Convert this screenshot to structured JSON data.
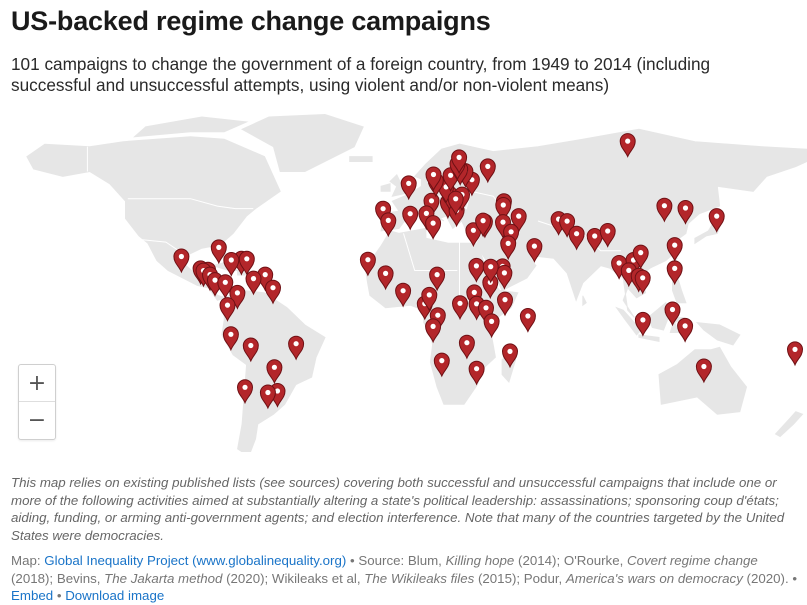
{
  "header": {
    "title": "US-backed regime change campaigns",
    "subtitle": "101 campaigns to change the government of a foreign country, from 1949 to 2014 (including successful and unsuccessful attempts, using violent and/or non-violent means)"
  },
  "map": {
    "land_color": "#e6e6e6",
    "border_color": "#ffffff",
    "marker_color": "#b3262a",
    "marker_stroke": "#6e1014",
    "marker_icon": "map-pin-icon",
    "markers": [
      {
        "name": "Guatemala",
        "lon": -90.5,
        "lat": 14.6
      },
      {
        "name": "Honduras",
        "lon": -87.2,
        "lat": 14.1
      },
      {
        "name": "Mexico",
        "lon": -99.1,
        "lat": 19.4
      },
      {
        "name": "El Salvador",
        "lon": -89.2,
        "lat": 13.7
      },
      {
        "name": "Nicaragua",
        "lon": -86.3,
        "lat": 12.1
      },
      {
        "name": "Costa Rica",
        "lon": -84.1,
        "lat": 9.9
      },
      {
        "name": "Panama",
        "lon": -79.5,
        "lat": 9.0
      },
      {
        "name": "Cuba",
        "lon": -82.4,
        "lat": 23.1
      },
      {
        "name": "Haiti",
        "lon": -72.3,
        "lat": 18.5
      },
      {
        "name": "Dominican Republic",
        "lon": -69.9,
        "lat": 18.5
      },
      {
        "name": "Jamaica",
        "lon": -76.8,
        "lat": 18.0
      },
      {
        "name": "Grenada",
        "lon": -61.7,
        "lat": 12.1
      },
      {
        "name": "Venezuela",
        "lon": -66.9,
        "lat": 10.5
      },
      {
        "name": "Guyana",
        "lon": -58.2,
        "lat": 6.8
      },
      {
        "name": "Colombia",
        "lon": -74.1,
        "lat": 4.7
      },
      {
        "name": "Ecuador",
        "lon": -78.5,
        "lat": -0.2
      },
      {
        "name": "Peru",
        "lon": -77.0,
        "lat": -12.0
      },
      {
        "name": "Brazil",
        "lon": -47.9,
        "lat": -15.8
      },
      {
        "name": "Bolivia",
        "lon": -68.1,
        "lat": -16.5
      },
      {
        "name": "Paraguay",
        "lon": -57.6,
        "lat": -25.3
      },
      {
        "name": "Chile",
        "lon": -70.7,
        "lat": -33.4
      },
      {
        "name": "Uruguay",
        "lon": -56.2,
        "lat": -34.9
      },
      {
        "name": "Argentina",
        "lon": -60.5,
        "lat": -35.5
      },
      {
        "name": "Portugal",
        "lon": -9.1,
        "lat": 38.7
      },
      {
        "name": "France",
        "lon": 2.3,
        "lat": 48.9
      },
      {
        "name": "Italy",
        "lon": 12.5,
        "lat": 41.9
      },
      {
        "name": "Albania",
        "lon": 19.8,
        "lat": 41.3
      },
      {
        "name": "Greece",
        "lon": 23.7,
        "lat": 38.0
      },
      {
        "name": "Yugoslavia",
        "lon": 20.5,
        "lat": 44.8
      },
      {
        "name": "Hungary",
        "lon": 19.0,
        "lat": 47.5
      },
      {
        "name": "Czechoslovakia",
        "lon": 14.4,
        "lat": 50.1
      },
      {
        "name": "Poland",
        "lon": 21.0,
        "lat": 52.2
      },
      {
        "name": "East Germany",
        "lon": 13.4,
        "lat": 52.5
      },
      {
        "name": "Romania",
        "lon": 26.1,
        "lat": 44.4
      },
      {
        "name": "Bulgaria",
        "lon": 23.3,
        "lat": 42.7
      },
      {
        "name": "Ukraine",
        "lon": 30.5,
        "lat": 50.4
      },
      {
        "name": "Belarus",
        "lon": 27.6,
        "lat": 53.9
      },
      {
        "name": "Lithuania",
        "lon": 25.3,
        "lat": 54.7
      },
      {
        "name": "Latvia",
        "lon": 24.1,
        "lat": 56.9
      },
      {
        "name": "Estonia",
        "lon": 24.8,
        "lat": 59.4
      },
      {
        "name": "Georgia",
        "lon": 44.8,
        "lat": 41.7
      },
      {
        "name": "Armenia",
        "lon": 44.5,
        "lat": 40.2
      },
      {
        "name": "Russia",
        "lon": 37.6,
        "lat": 55.8
      },
      {
        "name": "Russia (Siberia)",
        "lon": 100.0,
        "lat": 66.0
      },
      {
        "name": "Tunisia",
        "lon": 10.2,
        "lat": 36.8
      },
      {
        "name": "Libya",
        "lon": 13.2,
        "lat": 32.9
      },
      {
        "name": "Egypt",
        "lon": 31.2,
        "lat": 30.0
      },
      {
        "name": "Syria",
        "lon": 36.3,
        "lat": 33.5
      },
      {
        "name": "Lebanon",
        "lon": 35.5,
        "lat": 33.9
      },
      {
        "name": "Iraq",
        "lon": 44.4,
        "lat": 33.3
      },
      {
        "name": "Iran",
        "lon": 51.4,
        "lat": 35.7
      },
      {
        "name": "Afghanistan",
        "lon": 69.2,
        "lat": 34.5
      },
      {
        "name": "Kuwait",
        "lon": 48.0,
        "lat": 29.4
      },
      {
        "name": "Saudi Arabia",
        "lon": 46.7,
        "lat": 24.7
      },
      {
        "name": "Yemen",
        "lon": 44.2,
        "lat": 15.4
      },
      {
        "name": "South Yemen",
        "lon": 45.0,
        "lat": 12.8
      },
      {
        "name": "Oman",
        "lon": 58.4,
        "lat": 23.6
      },
      {
        "name": "Pakistan",
        "lon": 73.0,
        "lat": 33.7
      },
      {
        "name": "India",
        "lon": 77.2,
        "lat": 28.6
      },
      {
        "name": "Nepal",
        "lon": 85.3,
        "lat": 27.7
      },
      {
        "name": "Tibet",
        "lon": 91.1,
        "lat": 29.7
      },
      {
        "name": "China",
        "lon": 116.4,
        "lat": 39.9
      },
      {
        "name": "North Korea",
        "lon": 125.8,
        "lat": 39.0
      },
      {
        "name": "Japan",
        "lon": 139.7,
        "lat": 35.7
      },
      {
        "name": "Taiwan",
        "lon": 121.0,
        "lat": 24.0
      },
      {
        "name": "Burma",
        "lon": 96.2,
        "lat": 16.8
      },
      {
        "name": "Laos",
        "lon": 102.6,
        "lat": 18.0
      },
      {
        "name": "Thailand",
        "lon": 100.5,
        "lat": 13.8
      },
      {
        "name": "Cambodia",
        "lon": 104.9,
        "lat": 11.6
      },
      {
        "name": "South Vietnam",
        "lon": 106.7,
        "lat": 10.8
      },
      {
        "name": "North Vietnam",
        "lon": 105.8,
        "lat": 21.0
      },
      {
        "name": "Philippines",
        "lon": 121.0,
        "lat": 14.6
      },
      {
        "name": "Indonesia",
        "lon": 106.8,
        "lat": -6.2
      },
      {
        "name": "Indonesia (Sulawesi)",
        "lon": 120.0,
        "lat": -2.0
      },
      {
        "name": "East Timor",
        "lon": 125.6,
        "lat": -8.6
      },
      {
        "name": "Australia",
        "lon": 134.0,
        "lat": -25.0
      },
      {
        "name": "Fiji",
        "lon": 178.4,
        "lat": -18.1
      },
      {
        "name": "Morocco",
        "lon": -6.8,
        "lat": 34.0
      },
      {
        "name": "Algeria",
        "lon": 3.0,
        "lat": 36.7
      },
      {
        "name": "Mauritania",
        "lon": -15.9,
        "lat": 18.1
      },
      {
        "name": "Mali",
        "lon": -8.0,
        "lat": 12.6
      },
      {
        "name": "Ghana",
        "lon": -0.2,
        "lat": 5.6
      },
      {
        "name": "Chad",
        "lon": 15.0,
        "lat": 12.1
      },
      {
        "name": "Sudan",
        "lon": 32.5,
        "lat": 15.6
      },
      {
        "name": "South Sudan",
        "lon": 31.6,
        "lat": 4.9
      },
      {
        "name": "Ethiopia",
        "lon": 38.7,
        "lat": 9.0
      },
      {
        "name": "Eritrea",
        "lon": 38.9,
        "lat": 15.3
      },
      {
        "name": "Somalia",
        "lon": 45.3,
        "lat": 2.0
      },
      {
        "name": "Uganda",
        "lon": 32.6,
        "lat": 0.3
      },
      {
        "name": "Kenya",
        "lon": 36.8,
        "lat": -1.3
      },
      {
        "name": "Congo",
        "lon": 15.3,
        "lat": -4.3
      },
      {
        "name": "Angola",
        "lon": 13.2,
        "lat": -8.8
      },
      {
        "name": "Zambia",
        "lon": 28.3,
        "lat": -15.4
      },
      {
        "name": "Tanzania",
        "lon": 39.3,
        "lat": -6.8
      },
      {
        "name": "Mozambique",
        "lon": 32.6,
        "lat": -25.9
      },
      {
        "name": "Madagascar",
        "lon": 47.5,
        "lat": -18.9
      },
      {
        "name": "Seychelles",
        "lon": 55.5,
        "lat": -4.6
      },
      {
        "name": "Gabon",
        "lon": 9.5,
        "lat": 0.4
      },
      {
        "name": "Cameroon",
        "lon": 11.5,
        "lat": 3.9
      },
      {
        "name": "Namibia",
        "lon": 17.1,
        "lat": -22.6
      },
      {
        "name": "Zaire (East)",
        "lon": 25.2,
        "lat": 0.5
      }
    ]
  },
  "zoom": {
    "in_label": "+",
    "out_label": "−"
  },
  "footer": {
    "note": "This map relies on existing published lists (see sources) covering both successful and unsuccessful campaigns that include one or more of the following activities aimed at substantially altering a state's political leadership: assassinations; sponsoring coup d'états; aiding, funding, or arming anti-government agents; and election interference. Note that many of the countries targeted by the United States were democracies.",
    "map_label": "Map: ",
    "map_link": "Global Inequality Project (www.globalinequality.org)",
    "source_intro": " • Source: Blum, ",
    "s1_title": "Killing hope",
    "s1_year": " (2014); O'Rourke, ",
    "s2_title": "Covert regime change",
    "s2_year": " (2018); Bevins, ",
    "s3_title": "The Jakarta method",
    "s3_year": " (2020); Wikileaks et al, ",
    "s4_title": "The Wikileaks files",
    "s4_year": " (2015); Podur, ",
    "s5_title": "America's wars on democracy",
    "s5_year": " (2020). • ",
    "embed_label": "Embed",
    "sep": "  • ",
    "download_label": "Download image"
  }
}
